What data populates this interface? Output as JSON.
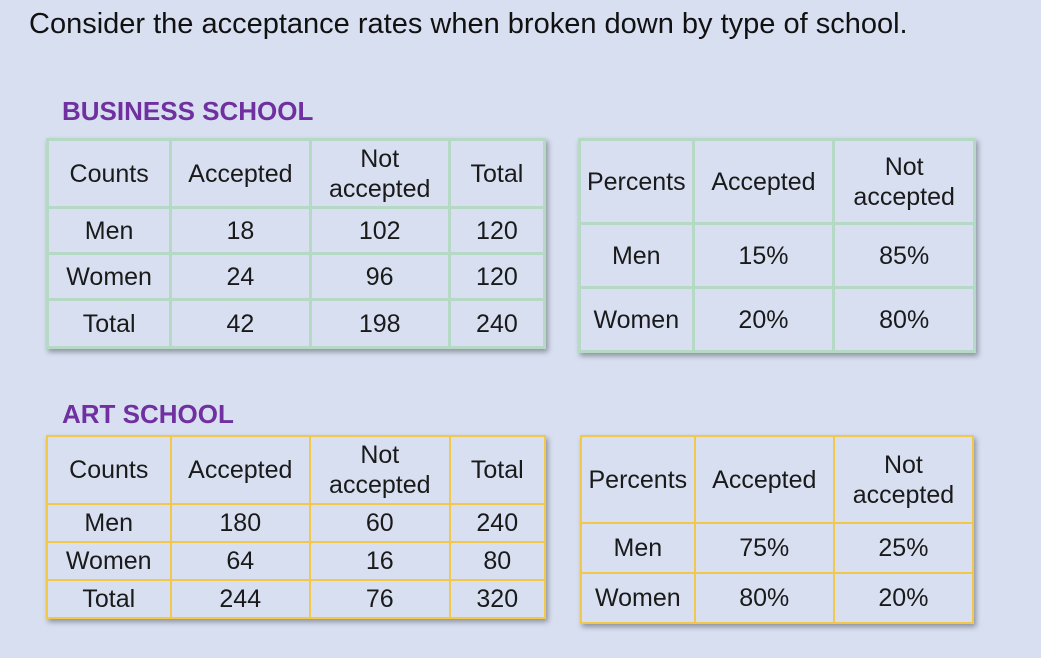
{
  "heading": "Consider the acceptance rates when broken down by type of school.",
  "business": {
    "title": "BUSINESS SCHOOL",
    "counts": {
      "headers": [
        "Counts",
        "Accepted",
        "Not accepted",
        "Total"
      ],
      "rows": [
        [
          "Men",
          "18",
          "102",
          "120"
        ],
        [
          "Women",
          "24",
          "96",
          "120"
        ],
        [
          "Total",
          "42",
          "198",
          "240"
        ]
      ]
    },
    "percents": {
      "headers": [
        "Percents",
        "Accepted",
        "Not accepted"
      ],
      "rows": [
        [
          "Men",
          "15%",
          "85%"
        ],
        [
          "Women",
          "20%",
          "80%"
        ]
      ]
    }
  },
  "art": {
    "title": "ART SCHOOL",
    "counts": {
      "headers": [
        "Counts",
        "Accepted",
        "Not accepted",
        "Total"
      ],
      "rows": [
        [
          "Men",
          "180",
          "60",
          "240"
        ],
        [
          "Women",
          "64",
          "16",
          "80"
        ],
        [
          "Total",
          "244",
          "76",
          "320"
        ]
      ]
    },
    "percents": {
      "headers": [
        "Percents",
        "Accepted",
        "Not accepted"
      ],
      "rows": [
        [
          "Men",
          "75%",
          "25%"
        ],
        [
          "Women",
          "80%",
          "20%"
        ]
      ]
    }
  }
}
